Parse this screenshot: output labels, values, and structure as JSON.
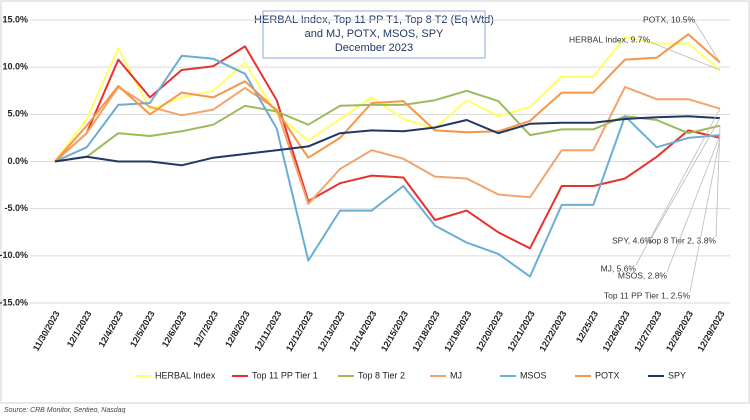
{
  "chart_data": {
    "type": "line",
    "title": [
      "HERBAL Index, Top 11 PP T1, Top 8 T2  (Eq Wtd)",
      "and MJ, POTX, MSOS, SPY",
      "December 2023"
    ],
    "categories": [
      "11/30/2023",
      "12/1/2023",
      "12/4/2023",
      "12/5/2023",
      "12/6/2023",
      "12/7/2023",
      "12/8/2023",
      "12/11/2023",
      "12/12/2023",
      "12/13/2023",
      "12/14/2023",
      "12/15/2023",
      "12/18/2023",
      "12/19/2023",
      "12/20/2023",
      "12/21/2023",
      "12/22/2023",
      "12/25/23",
      "12/26/2023",
      "12/27/2023",
      "12/28/2023",
      "12/29/2023"
    ],
    "series": [
      {
        "name": "HERBAL Index",
        "color": "#ffff66",
        "values": [
          0,
          4.5,
          12,
          5.5,
          6.8,
          7.5,
          10.5,
          5,
          2.2,
          4.5,
          6.8,
          4.5,
          3.5,
          6.5,
          4.8,
          5.8,
          9,
          9,
          13.2,
          12.5,
          12.5,
          9.7
        ]
      },
      {
        "name": "Top 11 PP Tier 1",
        "color": "#e8322d",
        "values": [
          0,
          3,
          10.8,
          6.8,
          9.7,
          10.1,
          12.2,
          6.5,
          -4.2,
          -2.3,
          -1.5,
          -1.7,
          -6.2,
          -5.2,
          -7.5,
          -9.2,
          -2.6,
          -2.6,
          -1.8,
          0.5,
          3.3,
          2.5
        ]
      },
      {
        "name": "Top 8 Tier 2",
        "color": "#9bbb59",
        "values": [
          0,
          0.5,
          3,
          2.7,
          3.2,
          3.9,
          5.9,
          5.3,
          3.9,
          5.9,
          6,
          6,
          6.5,
          7.5,
          6.4,
          2.8,
          3.4,
          3.4,
          4.8,
          4.4,
          3,
          3.8
        ]
      },
      {
        "name": "MJ",
        "color": "#f2a46b",
        "values": [
          0,
          3,
          7.9,
          5.8,
          4.9,
          5.5,
          7.8,
          5.5,
          -4.5,
          -0.8,
          1.2,
          0.3,
          -1.6,
          -1.8,
          -3.5,
          -3.8,
          1.2,
          1.2,
          7.9,
          6.6,
          6.6,
          5.6
        ]
      },
      {
        "name": "MSOS",
        "color": "#6aaed6",
        "values": [
          0,
          1.5,
          6,
          6.2,
          11.2,
          10.9,
          9.3,
          3.5,
          -10.5,
          -5.2,
          -5.2,
          -2.6,
          -6.8,
          -8.6,
          -9.8,
          -12.2,
          -4.6,
          -4.6,
          4.8,
          1.5,
          2.5,
          2.8
        ]
      },
      {
        "name": "POTX",
        "color": "#f79646",
        "values": [
          0,
          3.8,
          8,
          5,
          7.3,
          6.8,
          8.5,
          5.4,
          0.4,
          2.5,
          6.2,
          6.4,
          3.3,
          3.1,
          3.2,
          4.3,
          7.3,
          7.3,
          10.8,
          11,
          13.5,
          10.5
        ]
      },
      {
        "name": "SPY",
        "color": "#1f3864",
        "values": [
          0,
          0.5,
          0,
          0,
          -0.4,
          0.4,
          0.8,
          1.2,
          1.6,
          3,
          3.3,
          3.2,
          3.6,
          4.4,
          3,
          4,
          4.1,
          4.1,
          4.5,
          4.7,
          4.8,
          4.6
        ]
      }
    ],
    "ylim": [
      -15,
      15
    ],
    "yticks": [
      {
        "value": -15,
        "label": "-15.0%"
      },
      {
        "value": -10,
        "label": "-10.0%"
      },
      {
        "value": -5,
        "label": "-5.0%"
      },
      {
        "value": 0,
        "label": "0.0%"
      },
      {
        "value": 5,
        "label": "5.0%"
      },
      {
        "value": 10,
        "label": "10.0%"
      },
      {
        "value": 15,
        "label": "15.0%"
      }
    ],
    "grid": true,
    "legend": "bottom",
    "annotations": [
      "POTX, 10.5%",
      "HERBAL Index, 9.7%",
      "SPY, 4.6%",
      "Top 8 Tier 2, 3.8%",
      "MJ, 5.6%",
      "MSOS, 2.8%",
      "Top 11 PP Tier 1, 2.5%"
    ],
    "source": "Source: CRB Monitor, Sentieo, Nasdaq"
  }
}
